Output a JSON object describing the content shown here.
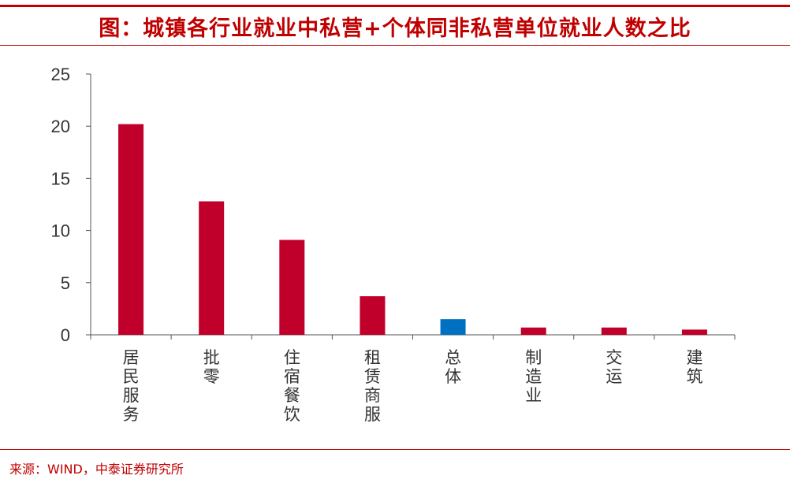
{
  "header": {
    "title": "图：城镇各行业就业中私营+个体同非私营单位就业人数之比"
  },
  "footer": {
    "source": "来源：WIND，中泰证券研究所"
  },
  "colors": {
    "accent": "#c00000",
    "bar_default": "#c0002a",
    "bar_highlight": "#0070c0"
  },
  "chart_data": {
    "type": "bar",
    "title": "图：城镇各行业就业中私营+个体同非私营单位就业人数之比",
    "xlabel": "",
    "ylabel": "",
    "categories": [
      "居民服务",
      "批零",
      "住宿餐饮",
      "租赁商服",
      "总体",
      "制造业",
      "交运",
      "建筑"
    ],
    "values": [
      20.2,
      12.8,
      9.1,
      3.7,
      1.5,
      0.7,
      0.7,
      0.5
    ],
    "highlight": [
      "总体"
    ],
    "ylim": [
      0,
      25
    ],
    "yticks": [
      0,
      5,
      10,
      15,
      20,
      25
    ],
    "grid": false,
    "legend": "none"
  }
}
